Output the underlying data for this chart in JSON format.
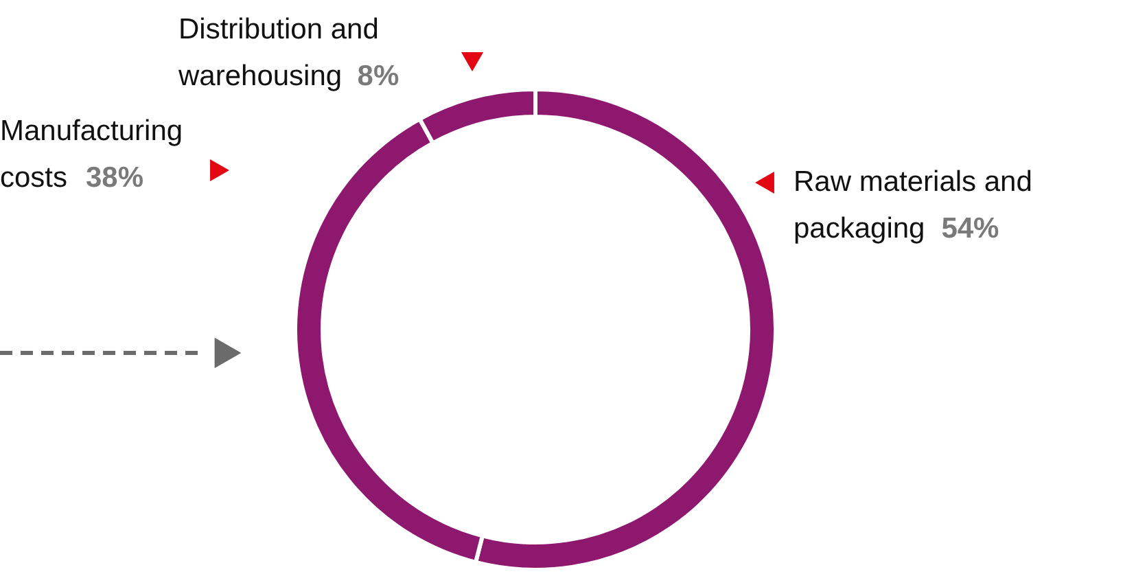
{
  "chart_data": {
    "type": "donut",
    "categories": [
      "Raw materials and packaging",
      "Manufacturing costs",
      "Distribution and warehousing"
    ],
    "values": [
      54,
      38,
      8
    ],
    "colors": [
      "#8e186e",
      "#8e186e",
      "#8e186e"
    ],
    "value_labels": [
      "54%",
      "38%",
      "8%"
    ]
  }
}
